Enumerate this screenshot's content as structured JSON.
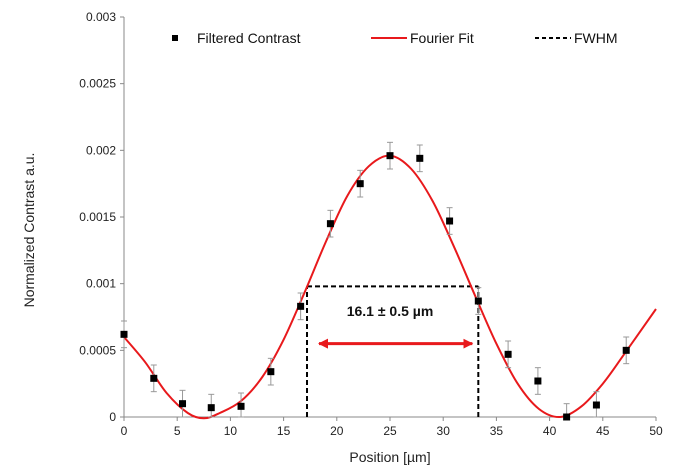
{
  "chart_data": {
    "type": "scatter",
    "xlabel": "Position [µm]",
    "ylabel": "Normalized Contrast a.u.",
    "xlim": [
      0,
      50
    ],
    "ylim": [
      0,
      0.003
    ],
    "xticks": [
      "0",
      "5",
      "10",
      "15",
      "20",
      "25",
      "30",
      "35",
      "40",
      "45",
      "50"
    ],
    "yticks": [
      "0",
      "0.0005",
      "0.001",
      "0.0015",
      "0.002",
      "0.0025",
      "0.003"
    ],
    "grid": false,
    "legend_position": "top",
    "legend": {
      "points": "Filtered Contrast",
      "fit": "Fourier Fit",
      "fwhm": "FWHM"
    },
    "colors": {
      "points": "#000000",
      "fit": "#e8191c",
      "fwhm": "#000000",
      "arrow": "#e8191c"
    },
    "series": [
      {
        "name": "Filtered Contrast",
        "x": [
          0,
          2.8,
          5.5,
          8.2,
          11.0,
          13.8,
          16.6,
          19.4,
          22.2,
          25.0,
          27.8,
          30.6,
          33.3,
          36.1,
          38.9,
          41.6,
          44.4,
          47.2
        ],
        "y": [
          0.00062,
          0.00029,
          0.0001,
          7e-05,
          8e-05,
          0.00034,
          0.00083,
          0.00145,
          0.00175,
          0.00196,
          0.00194,
          0.00147,
          0.00087,
          0.00047,
          0.00027,
          0.0,
          9e-05,
          0.0005
        ],
        "err": [
          0.0001,
          0.0001,
          0.0001,
          0.0001,
          0.0001,
          0.0001,
          0.0001,
          0.0001,
          0.0001,
          0.0001,
          0.0001,
          0.0001,
          0.0001,
          0.0001,
          0.0001,
          0.0001,
          0.0001,
          0.0001
        ]
      },
      {
        "name": "Fourier Fit",
        "x": [
          0,
          2,
          4,
          6,
          7.5,
          9,
          11,
          13,
          15,
          17,
          19,
          21,
          23,
          25,
          27,
          29,
          31,
          33,
          35,
          37,
          39,
          41,
          43,
          45,
          47,
          50
        ],
        "y": [
          0.0006,
          0.00041,
          0.00018,
          3e-05,
          -1e-05,
          3e-05,
          0.00012,
          0.0003,
          0.00058,
          0.00094,
          0.00132,
          0.00166,
          0.00188,
          0.00196,
          0.00186,
          0.00162,
          0.00128,
          0.00091,
          0.00055,
          0.00025,
          6e-05,
          0.0,
          8e-05,
          0.00025,
          0.00047,
          0.00081
        ]
      }
    ],
    "fwhm": {
      "x_start": 17.2,
      "x_end": 33.3,
      "y": 0.00098
    },
    "annotation": "16.1 ± 0.5 µm",
    "arrow_y": 0.00055
  }
}
